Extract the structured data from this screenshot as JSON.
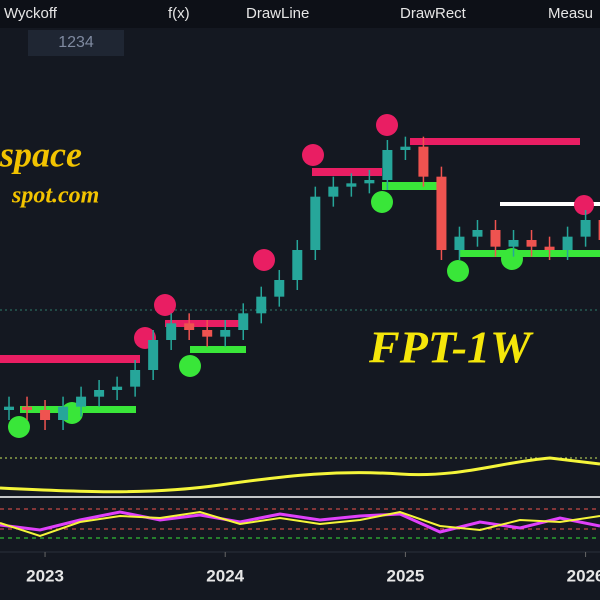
{
  "toolbar": {
    "items": [
      "Wyckoff",
      "f(x)",
      "DrawLine",
      "DrawRect",
      "Measu"
    ]
  },
  "input_value": "1234",
  "watermark": {
    "line1": "space",
    "line2": "spot.com"
  },
  "chart_data": {
    "type": "candlestick",
    "title": "FPT-1W",
    "x": [
      2022.8,
      2022.9,
      2023.0,
      2023.1,
      2023.2,
      2023.3,
      2023.4,
      2023.5,
      2023.6,
      2023.7,
      2023.8,
      2023.9,
      2024.0,
      2024.1,
      2024.2,
      2024.3,
      2024.4,
      2024.5,
      2024.6,
      2024.7,
      2024.8,
      2024.9,
      2025.0,
      2025.1,
      2025.2,
      2025.3,
      2025.4,
      2025.5,
      2025.6,
      2025.7,
      2025.8,
      2025.9,
      2026.0,
      2026.1
    ],
    "open": [
      81,
      82,
      81,
      78,
      82,
      85,
      87,
      88,
      93,
      102,
      107,
      105,
      103,
      105,
      110,
      115,
      120,
      129,
      145,
      148,
      149,
      150,
      159,
      160,
      151,
      129,
      133,
      135,
      130,
      132,
      130,
      129,
      133,
      138
    ],
    "high": [
      85,
      85,
      84,
      85,
      88,
      90,
      91,
      96,
      105,
      110,
      110,
      108,
      108,
      113,
      118,
      123,
      132,
      148,
      151,
      152,
      153,
      162,
      163,
      163,
      154,
      136,
      138,
      138,
      135,
      135,
      133,
      136,
      141,
      141
    ],
    "low": [
      78,
      78,
      75,
      75,
      79,
      82,
      84,
      85,
      90,
      99,
      102,
      100,
      100,
      102,
      107,
      112,
      117,
      126,
      142,
      145,
      146,
      147,
      156,
      148,
      126,
      126,
      130,
      127,
      127,
      127,
      126,
      126,
      130,
      129
    ],
    "close": [
      82,
      81,
      78,
      82,
      85,
      87,
      88,
      93,
      102,
      107,
      105,
      103,
      105,
      110,
      115,
      120,
      129,
      145,
      148,
      149,
      150,
      159,
      160,
      151,
      129,
      133,
      135,
      130,
      132,
      130,
      129,
      133,
      138,
      132
    ],
    "up_color": "#26a69a",
    "down_color": "#ef5350",
    "xlim": [
      2022.75,
      2026.08
    ],
    "xticks": [
      2023,
      2024,
      2025,
      2026
    ],
    "ylim": [
      60,
      180
    ]
  }
}
